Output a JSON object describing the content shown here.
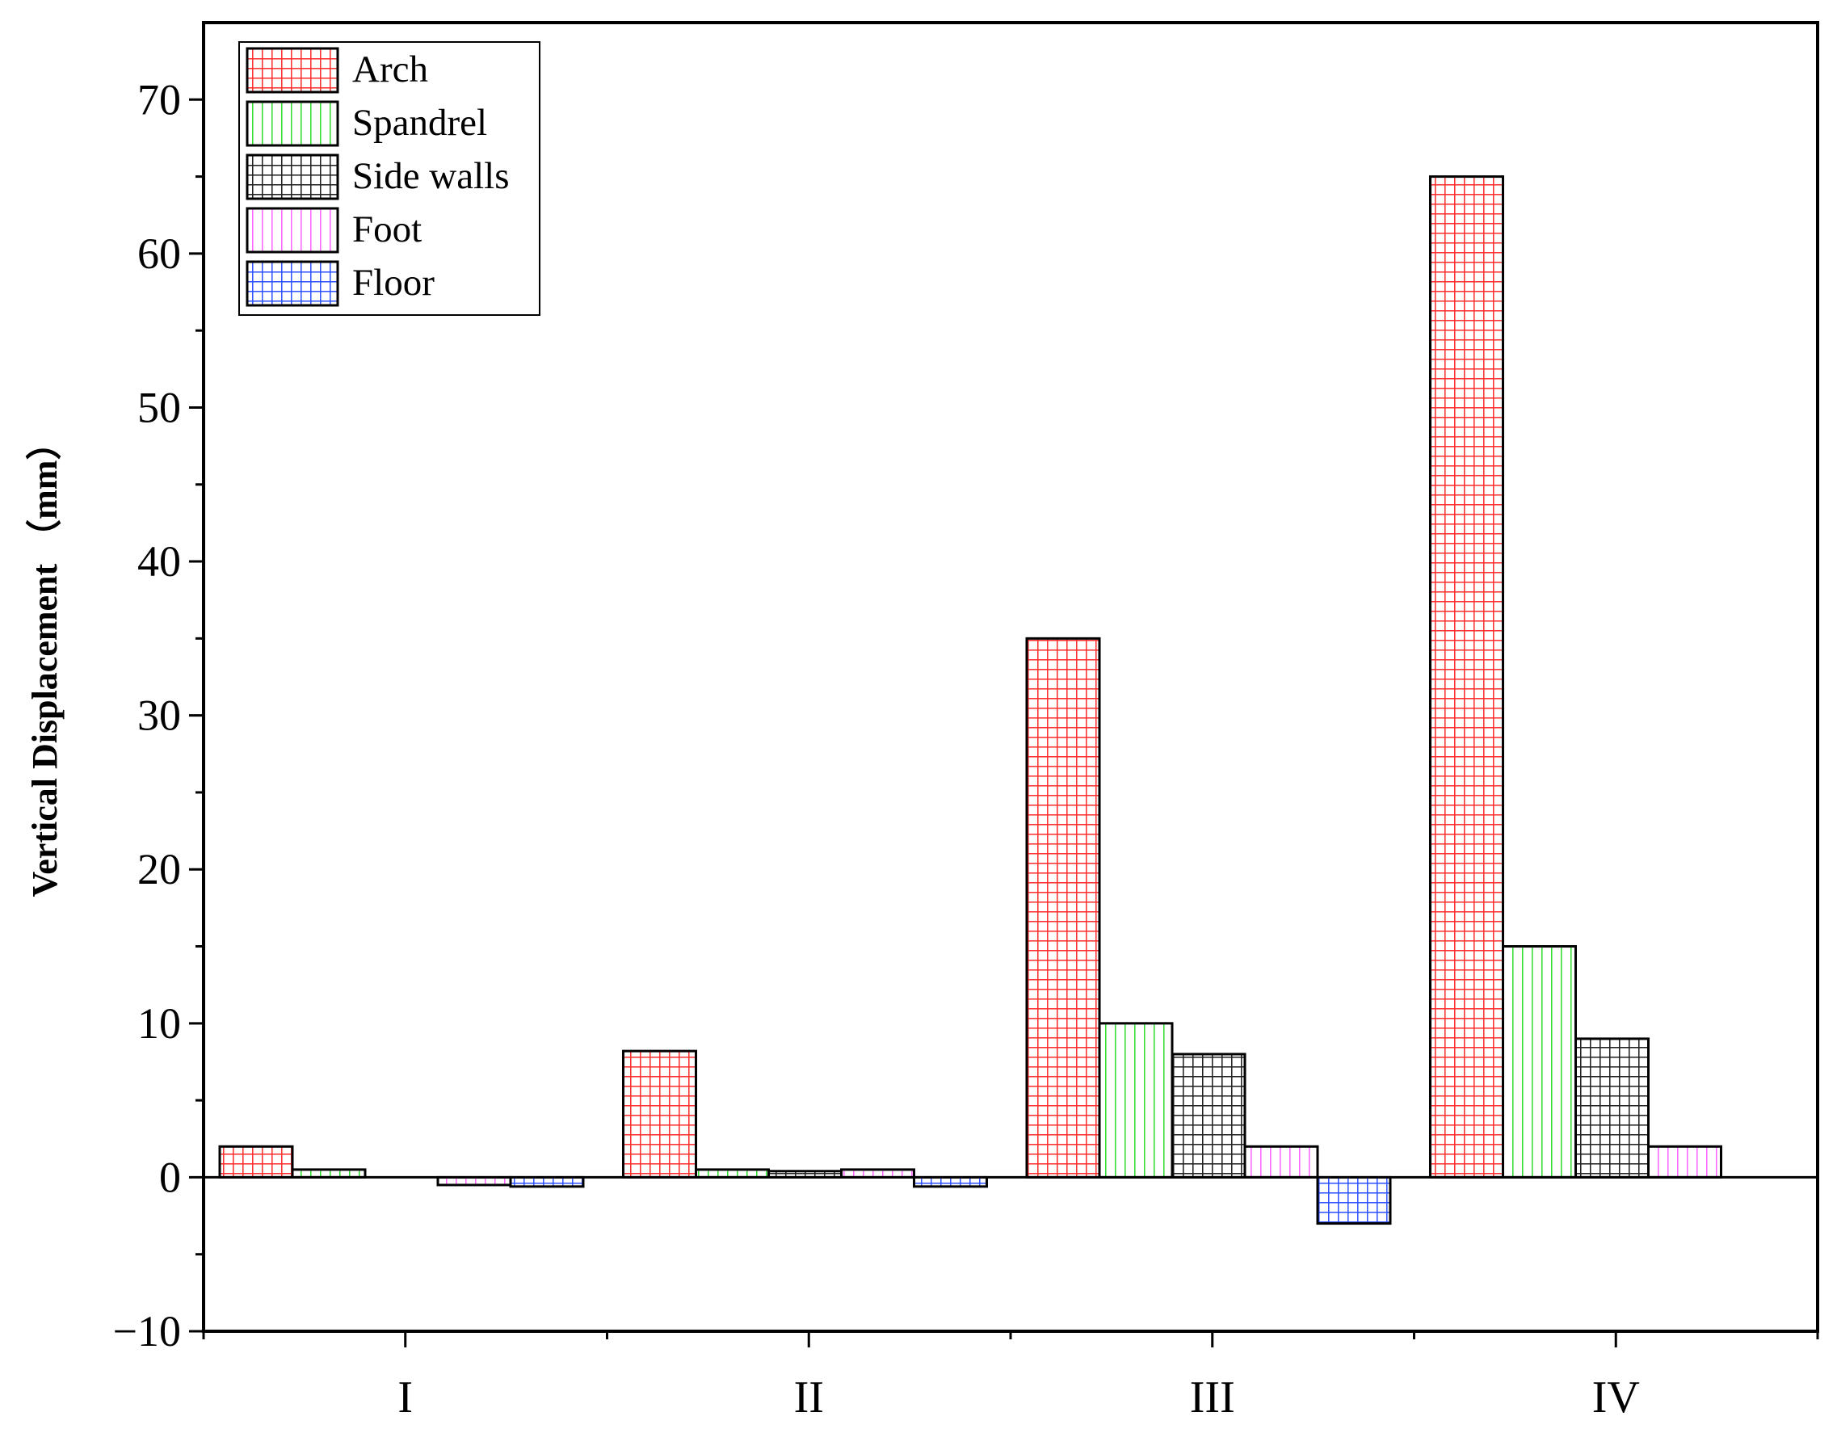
{
  "chart_data": {
    "type": "bar",
    "title": "",
    "xlabel": "",
    "ylabel": "Vertical Displacement （mm）",
    "categories": [
      "I",
      "II",
      "III",
      "IV"
    ],
    "ylim": [
      -10,
      75
    ],
    "yticks": [
      -10,
      0,
      10,
      20,
      30,
      40,
      50,
      60,
      70
    ],
    "grid": false,
    "legend_position": "top-left",
    "series": [
      {
        "name": "Arch",
        "values": [
          2,
          8.2,
          35,
          65
        ]
      },
      {
        "name": "Spandrel",
        "values": [
          0.5,
          0.5,
          10,
          15
        ]
      },
      {
        "name": "Side walls",
        "values": [
          0,
          0.4,
          8,
          9
        ]
      },
      {
        "name": "Foot",
        "values": [
          -0.5,
          0.5,
          2,
          2
        ]
      },
      {
        "name": "Floor",
        "values": [
          -0.6,
          -0.6,
          -3,
          0
        ]
      }
    ],
    "series_colors": [
      "#ff3333",
      "#33dd33",
      "#222222",
      "#ff66ff",
      "#3355ff"
    ],
    "series_patterns": [
      "grid",
      "vertical",
      "grid",
      "vertical",
      "grid"
    ]
  }
}
